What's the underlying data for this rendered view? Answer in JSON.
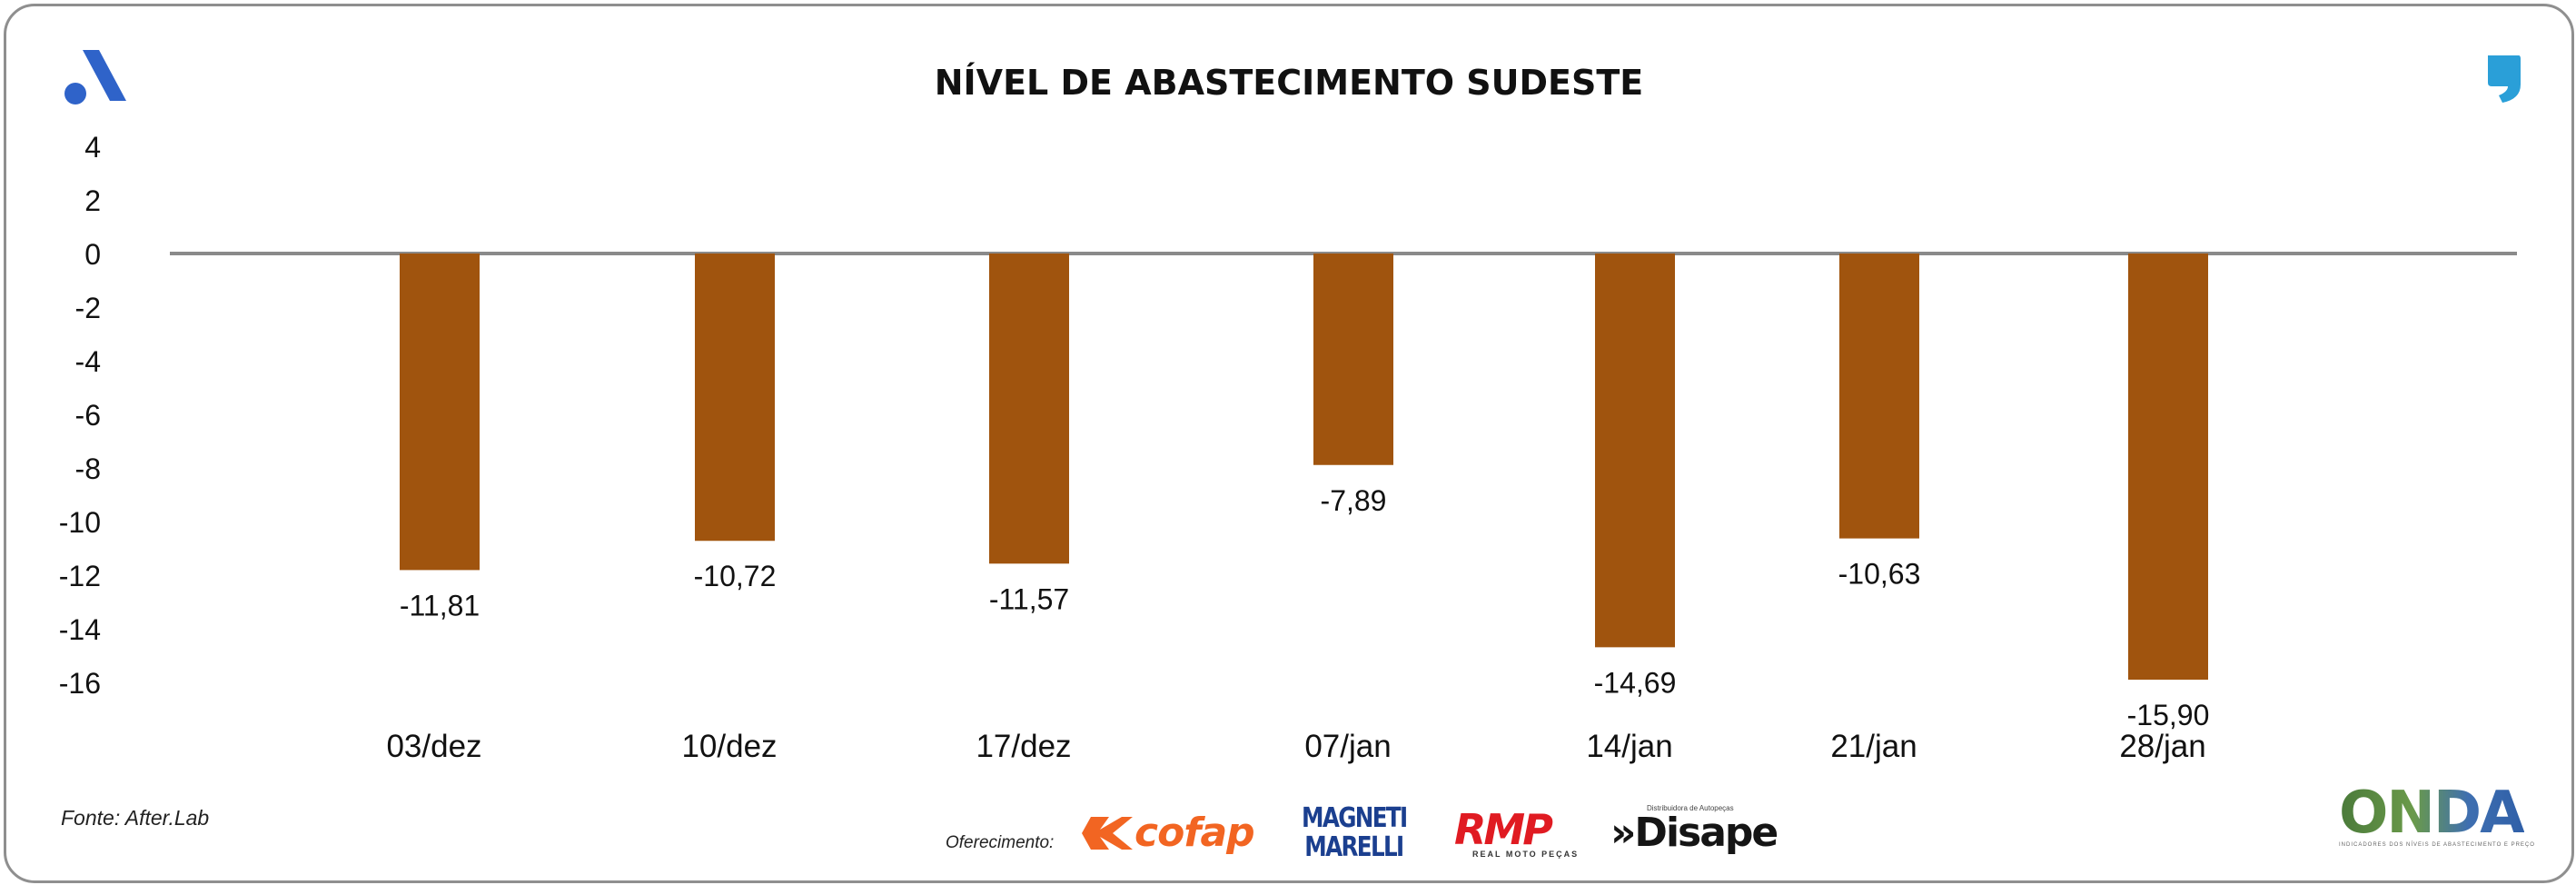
{
  "chart_data": {
    "type": "bar",
    "title": "NÍVEL DE ABASTECIMENTO SUDESTE",
    "xlabel": "",
    "ylabel": "",
    "categories": [
      "03/dez",
      "10/dez",
      "17/dez",
      "07/jan",
      "14/jan",
      "21/jan",
      "28/jan"
    ],
    "series": [
      {
        "values": [
          -11.81,
          -10.72,
          -11.57,
          -7.89,
          -14.69,
          -10.63,
          -15.9
        ],
        "labels": [
          "-11,81",
          "-10,72",
          "-11,57",
          "-7,89",
          "-14,69",
          "-10,63",
          "-15,90"
        ]
      }
    ],
    "ylim": [
      -16,
      4
    ],
    "yticks": [
      "4",
      "2",
      "0",
      "-2",
      "-4",
      "-6",
      "-8",
      "-10",
      "-12",
      "-14",
      "-16"
    ],
    "grid": false,
    "legend": "none",
    "bar_color": "#a0540e"
  },
  "footer": {
    "source": "Fonte: After.Lab",
    "sponsor_label": "Oferecimento:"
  },
  "logos": {
    "cofap": "cofap",
    "magneti_line1": "MAGNETI",
    "magneti_line2": "MARELLI",
    "rmp_big": "RMP",
    "rmp_small": "REAL MOTO PEÇAS",
    "disape_small": "Distribuidora de Autopeças",
    "disape_big": "»Disape",
    "onda_word": "ONDA",
    "onda_tag": "INDICADORES DOS NÍVEIS DE ABASTECIMENTO E PREÇO"
  },
  "colors": {
    "brand_blue": "#2f63c9",
    "quote_blue": "#2a9fd8",
    "axis": "#8a8a8a"
  }
}
